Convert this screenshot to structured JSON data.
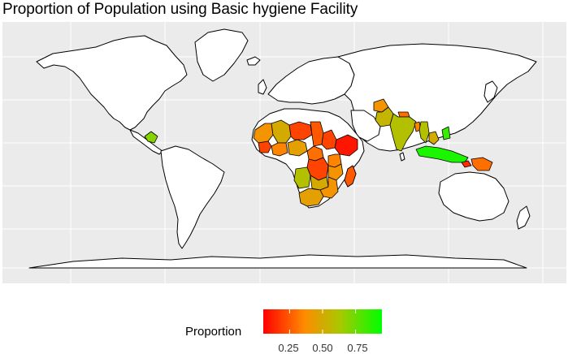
{
  "title": "Proportion of Population using Basic hygiene Facility",
  "legend": {
    "title": "Proportion",
    "ticks": [
      "0.25",
      "0.50",
      "0.75"
    ],
    "tick_values": [
      0.25,
      0.5,
      0.75
    ],
    "range": [
      0.05,
      0.95
    ],
    "gradient_colors": [
      "#ff0000",
      "#ff8c00",
      "#a8c800",
      "#00ff00"
    ]
  },
  "map_data": {
    "type": "choropleth",
    "projection": "equirectangular",
    "background": "#ebebeb",
    "no_data_fill": "#ffffff",
    "grid": true,
    "regions": [
      {
        "region": "Guatemala / Honduras",
        "value": 0.7
      },
      {
        "region": "Mauritania / Senegal / Gambia",
        "value": 0.4
      },
      {
        "region": "Mali",
        "value": 0.5
      },
      {
        "region": "Niger",
        "value": 0.2
      },
      {
        "region": "Chad",
        "value": 0.25
      },
      {
        "region": "Guinea / Sierra Leone / Liberia",
        "value": 0.2
      },
      {
        "region": "Cote d'Ivoire / Ghana / Togo / Benin",
        "value": 0.35
      },
      {
        "region": "Nigeria",
        "value": 0.45
      },
      {
        "region": "Ethiopia",
        "value": 0.1
      },
      {
        "region": "Sudan / South Sudan",
        "value": 0.2
      },
      {
        "region": "Central African Republic / Cameroon",
        "value": 0.3
      },
      {
        "region": "DR Congo",
        "value": 0.2
      },
      {
        "region": "Uganda / Kenya",
        "value": 0.35
      },
      {
        "region": "Tanzania",
        "value": 0.4
      },
      {
        "region": "Angola",
        "value": 0.6
      },
      {
        "region": "Zambia",
        "value": 0.5
      },
      {
        "region": "Zimbabwe / Mozambique / Malawi",
        "value": 0.4
      },
      {
        "region": "South Africa",
        "value": 0.45
      },
      {
        "region": "Madagascar",
        "value": 0.25
      },
      {
        "region": "Afghanistan",
        "value": 0.4
      },
      {
        "region": "Pakistan",
        "value": 0.55
      },
      {
        "region": "Nepal",
        "value": 0.3
      },
      {
        "region": "India",
        "value": 0.6
      },
      {
        "region": "Bangladesh",
        "value": 0.35
      },
      {
        "region": "Myanmar",
        "value": 0.6
      },
      {
        "region": "Laos / Cambodia",
        "value": 0.5
      },
      {
        "region": "Vietnam / Philippines",
        "value": 0.85
      },
      {
        "region": "Indonesia",
        "value": 0.9
      },
      {
        "region": "Timor-Leste",
        "value": 0.15
      },
      {
        "region": "Papua New Guinea",
        "value": 0.3
      }
    ]
  }
}
